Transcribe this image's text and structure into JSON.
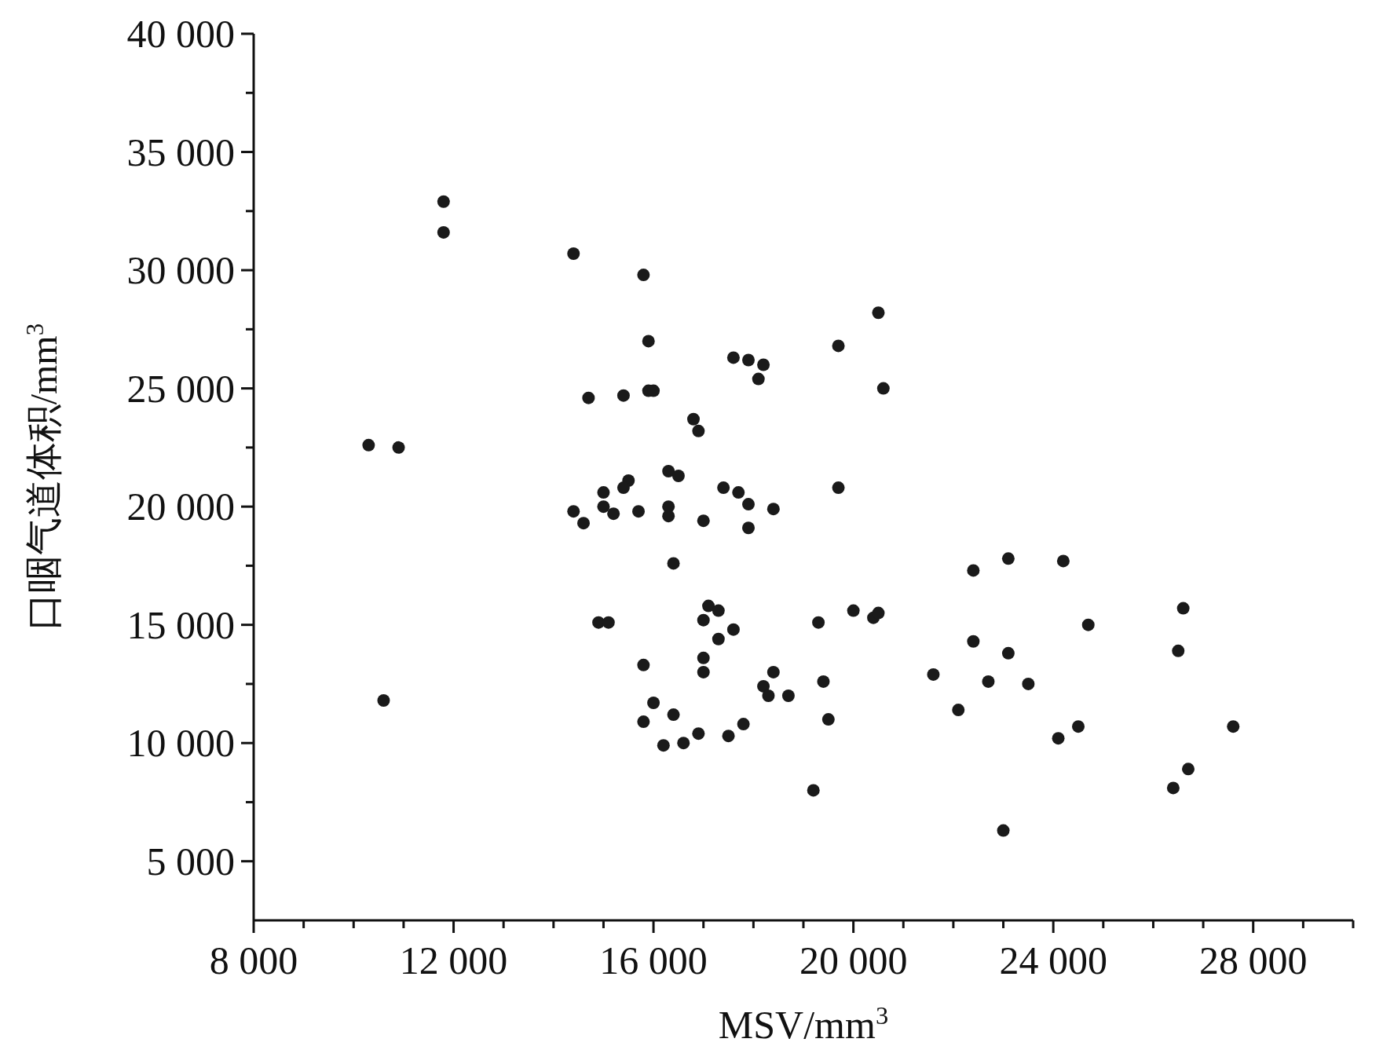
{
  "chart_data": {
    "type": "scatter",
    "xlabel": "MSV/mm$^{3}$",
    "ylabel": "口咽气道体积/mm$^{3}$",
    "marker": "circle",
    "grid": false,
    "xlim": [
      8000,
      30000
    ],
    "ylim": [
      2500,
      40000
    ],
    "xticks": [
      {
        "value": 8000,
        "label": "8 000"
      },
      {
        "value": 9000,
        "label": null
      },
      {
        "value": 10000,
        "label": null
      },
      {
        "value": 11000,
        "label": null
      },
      {
        "value": 12000,
        "label": "12 000"
      },
      {
        "value": 13000,
        "label": null
      },
      {
        "value": 14000,
        "label": null
      },
      {
        "value": 15000,
        "label": null
      },
      {
        "value": 16000,
        "label": "16 000"
      },
      {
        "value": 17000,
        "label": null
      },
      {
        "value": 18000,
        "label": null
      },
      {
        "value": 19000,
        "label": null
      },
      {
        "value": 20000,
        "label": "20 000"
      },
      {
        "value": 21000,
        "label": null
      },
      {
        "value": 22000,
        "label": null
      },
      {
        "value": 23000,
        "label": null
      },
      {
        "value": 24000,
        "label": "24 000"
      },
      {
        "value": 25000,
        "label": null
      },
      {
        "value": 26000,
        "label": null
      },
      {
        "value": 27000,
        "label": null
      },
      {
        "value": 28000,
        "label": "28 000"
      },
      {
        "value": 29000,
        "label": null
      },
      {
        "value": 30000,
        "label": null
      }
    ],
    "yticks": [
      {
        "value": 5000,
        "label": "5 000"
      },
      {
        "value": 7500,
        "label": null
      },
      {
        "value": 10000,
        "label": "10 000"
      },
      {
        "value": 12500,
        "label": null
      },
      {
        "value": 15000,
        "label": "15 000"
      },
      {
        "value": 17500,
        "label": null
      },
      {
        "value": 20000,
        "label": "20 000"
      },
      {
        "value": 22500,
        "label": null
      },
      {
        "value": 25000,
        "label": "25 000"
      },
      {
        "value": 27500,
        "label": null
      },
      {
        "value": 30000,
        "label": "30 000"
      },
      {
        "value": 32500,
        "label": null
      },
      {
        "value": 35000,
        "label": "35 000"
      },
      {
        "value": 37500,
        "label": null
      },
      {
        "value": 40000,
        "label": "40 000"
      }
    ],
    "series": [
      {
        "color": "#1a1a1a",
        "x": [
          10300,
          10900,
          10600,
          11800,
          11800,
          14400,
          15800,
          15900,
          15900,
          16000,
          14700,
          15400,
          16800,
          16900,
          16300,
          16500,
          15500,
          15400,
          15000,
          15000,
          14400,
          14600,
          15200,
          15700,
          16300,
          16300,
          17000,
          17400,
          17700,
          17900,
          18400,
          17900,
          16400,
          19700,
          17600,
          17900,
          18200,
          18100,
          19700,
          20500,
          20600,
          14900,
          15100,
          15800,
          15800,
          16000,
          16200,
          16600,
          16400,
          16900,
          17100,
          17300,
          17000,
          17600,
          17300,
          17000,
          17000,
          17500,
          17800,
          18200,
          18400,
          18300,
          18700,
          19200,
          19300,
          19400,
          19500,
          20000,
          20400,
          20500,
          21600,
          22100,
          22400,
          22400,
          22700,
          23100,
          23100,
          23500,
          23000,
          24200,
          24100,
          24500,
          24700,
          26600,
          26500,
          26400,
          26700,
          27600
        ],
        "values": [
          22600,
          22500,
          11800,
          32900,
          31600,
          30700,
          29800,
          27000,
          24900,
          24900,
          24600,
          24700,
          23700,
          23200,
          21500,
          21300,
          21100,
          20800,
          20600,
          20000,
          19800,
          19300,
          19700,
          19800,
          20000,
          19600,
          19400,
          20800,
          20600,
          20100,
          19900,
          19100,
          17600,
          20800,
          26300,
          26200,
          26000,
          25400,
          26800,
          28200,
          25000,
          15100,
          15100,
          13300,
          10900,
          11700,
          9900,
          10000,
          11200,
          10400,
          15800,
          15600,
          15200,
          14800,
          14400,
          13600,
          13000,
          10300,
          10800,
          12400,
          13000,
          12000,
          12000,
          8000,
          15100,
          12600,
          11000,
          15600,
          15300,
          15500,
          12900,
          11400,
          17300,
          14300,
          12600,
          17800,
          13800,
          12500,
          6300,
          17700,
          10200,
          10700,
          15000,
          15700,
          13900,
          8100,
          8900,
          10700
        ]
      }
    ]
  }
}
